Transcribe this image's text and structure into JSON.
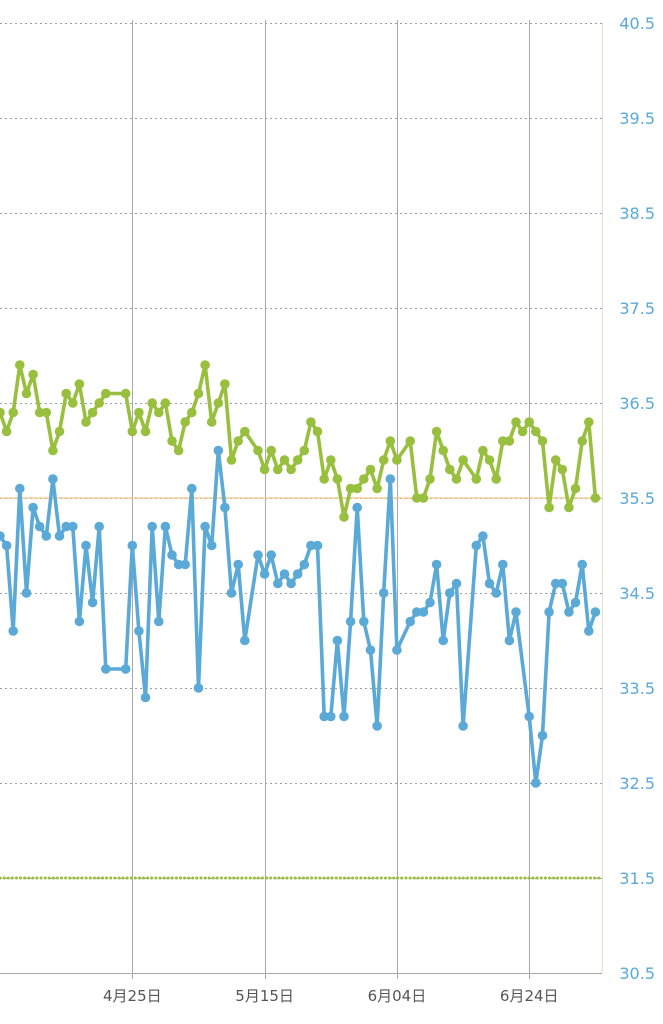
{
  "chart_data": {
    "type": "line",
    "title": "",
    "xlabel": "",
    "ylabel": "",
    "ylim": [
      30.5,
      40.5
    ],
    "y_ticks": [
      "40.5",
      "39.5",
      "38.5",
      "37.5",
      "36.5",
      "35.5",
      "34.5",
      "33.5",
      "32.5",
      "31.5",
      "30.5"
    ],
    "x_tick_labels": [
      "4月25日",
      "5月15日",
      "6月04日",
      "6月24日"
    ],
    "x_tick_dates": [
      "2023-04-25",
      "2023-05-15",
      "2023-06-04",
      "2023-06-24"
    ],
    "x_range": [
      "2023-04-05",
      "2023-07-05"
    ],
    "grid": true,
    "reference_lines": [
      {
        "value": 35.5,
        "color": "#f3c887",
        "style": "solid"
      },
      {
        "value": 31.5,
        "color": "#9bbf3c",
        "style": "dotted"
      }
    ],
    "series": [
      {
        "color": "#98bf3d",
        "points": [
          [
            "2023-04-05",
            36.4
          ],
          [
            "2023-04-06",
            36.2
          ],
          [
            "2023-04-07",
            36.4
          ],
          [
            "2023-04-08",
            36.9
          ],
          [
            "2023-04-09",
            36.6
          ],
          [
            "2023-04-10",
            36.8
          ],
          [
            "2023-04-11",
            36.4
          ],
          [
            "2023-04-12",
            36.4
          ],
          [
            "2023-04-13",
            36.0
          ],
          [
            "2023-04-14",
            36.2
          ],
          [
            "2023-04-15",
            36.6
          ],
          [
            "2023-04-16",
            36.5
          ],
          [
            "2023-04-17",
            36.7
          ],
          [
            "2023-04-18",
            36.3
          ],
          [
            "2023-04-19",
            36.4
          ],
          [
            "2023-04-20",
            36.5
          ],
          [
            "2023-04-21",
            36.6
          ],
          [
            "2023-04-24",
            36.6
          ],
          [
            "2023-04-25",
            36.2
          ],
          [
            "2023-04-26",
            36.4
          ],
          [
            "2023-04-27",
            36.2
          ],
          [
            "2023-04-28",
            36.5
          ],
          [
            "2023-04-29",
            36.4
          ],
          [
            "2023-04-30",
            36.5
          ],
          [
            "2023-05-01",
            36.1
          ],
          [
            "2023-05-02",
            36.0
          ],
          [
            "2023-05-03",
            36.3
          ],
          [
            "2023-05-04",
            36.4
          ],
          [
            "2023-05-05",
            36.6
          ],
          [
            "2023-05-06",
            36.9
          ],
          [
            "2023-05-07",
            36.3
          ],
          [
            "2023-05-08",
            36.5
          ],
          [
            "2023-05-09",
            36.7
          ],
          [
            "2023-05-10",
            35.9
          ],
          [
            "2023-05-11",
            36.1
          ],
          [
            "2023-05-12",
            36.2
          ],
          [
            "2023-05-14",
            36.0
          ],
          [
            "2023-05-15",
            35.8
          ],
          [
            "2023-05-16",
            36.0
          ],
          [
            "2023-05-17",
            35.8
          ],
          [
            "2023-05-18",
            35.9
          ],
          [
            "2023-05-19",
            35.8
          ],
          [
            "2023-05-20",
            35.9
          ],
          [
            "2023-05-21",
            36.0
          ],
          [
            "2023-05-22",
            36.3
          ],
          [
            "2023-05-23",
            36.2
          ],
          [
            "2023-05-24",
            35.7
          ],
          [
            "2023-05-25",
            35.9
          ],
          [
            "2023-05-26",
            35.7
          ],
          [
            "2023-05-27",
            35.3
          ],
          [
            "2023-05-28",
            35.6
          ],
          [
            "2023-05-29",
            35.6
          ],
          [
            "2023-05-30",
            35.7
          ],
          [
            "2023-05-31",
            35.8
          ],
          [
            "2023-06-01",
            35.6
          ],
          [
            "2023-06-02",
            35.9
          ],
          [
            "2023-06-03",
            36.1
          ],
          [
            "2023-06-04",
            35.9
          ],
          [
            "2023-06-06",
            36.1
          ],
          [
            "2023-06-07",
            35.5
          ],
          [
            "2023-06-08",
            35.5
          ],
          [
            "2023-06-09",
            35.7
          ],
          [
            "2023-06-10",
            36.2
          ],
          [
            "2023-06-11",
            36.0
          ],
          [
            "2023-06-12",
            35.8
          ],
          [
            "2023-06-13",
            35.7
          ],
          [
            "2023-06-14",
            35.9
          ],
          [
            "2023-06-16",
            35.7
          ],
          [
            "2023-06-17",
            36.0
          ],
          [
            "2023-06-18",
            35.9
          ],
          [
            "2023-06-19",
            35.7
          ],
          [
            "2023-06-20",
            36.1
          ],
          [
            "2023-06-21",
            36.1
          ],
          [
            "2023-06-22",
            36.3
          ],
          [
            "2023-06-23",
            36.2
          ],
          [
            "2023-06-24",
            36.3
          ],
          [
            "2023-06-25",
            36.2
          ],
          [
            "2023-06-26",
            36.1
          ],
          [
            "2023-06-27",
            35.4
          ],
          [
            "2023-06-28",
            35.9
          ],
          [
            "2023-06-29",
            35.8
          ],
          [
            "2023-06-30",
            35.4
          ],
          [
            "2023-07-01",
            35.6
          ],
          [
            "2023-07-02",
            36.1
          ],
          [
            "2023-07-03",
            36.3
          ],
          [
            "2023-07-04",
            35.5
          ]
        ]
      },
      {
        "color": "#5aa9d6",
        "points": [
          [
            "2023-04-05",
            35.1
          ],
          [
            "2023-04-06",
            35.0
          ],
          [
            "2023-04-07",
            34.1
          ],
          [
            "2023-04-08",
            35.6
          ],
          [
            "2023-04-09",
            34.5
          ],
          [
            "2023-04-10",
            35.4
          ],
          [
            "2023-04-11",
            35.2
          ],
          [
            "2023-04-12",
            35.1
          ],
          [
            "2023-04-13",
            35.7
          ],
          [
            "2023-04-14",
            35.1
          ],
          [
            "2023-04-15",
            35.2
          ],
          [
            "2023-04-16",
            35.2
          ],
          [
            "2023-04-17",
            34.2
          ],
          [
            "2023-04-18",
            35.0
          ],
          [
            "2023-04-19",
            34.4
          ],
          [
            "2023-04-20",
            35.2
          ],
          [
            "2023-04-21",
            33.7
          ],
          [
            "2023-04-24",
            33.7
          ],
          [
            "2023-04-25",
            35.0
          ],
          [
            "2023-04-26",
            34.1
          ],
          [
            "2023-04-27",
            33.4
          ],
          [
            "2023-04-28",
            35.2
          ],
          [
            "2023-04-29",
            34.2
          ],
          [
            "2023-04-30",
            35.2
          ],
          [
            "2023-05-01",
            34.9
          ],
          [
            "2023-05-02",
            34.8
          ],
          [
            "2023-05-03",
            34.8
          ],
          [
            "2023-05-04",
            35.6
          ],
          [
            "2023-05-05",
            33.5
          ],
          [
            "2023-05-06",
            35.2
          ],
          [
            "2023-05-07",
            35.0
          ],
          [
            "2023-05-08",
            36.0
          ],
          [
            "2023-05-09",
            35.4
          ],
          [
            "2023-05-10",
            34.5
          ],
          [
            "2023-05-11",
            34.8
          ],
          [
            "2023-05-12",
            34.0
          ],
          [
            "2023-05-14",
            34.9
          ],
          [
            "2023-05-15",
            34.7
          ],
          [
            "2023-05-16",
            34.9
          ],
          [
            "2023-05-17",
            34.6
          ],
          [
            "2023-05-18",
            34.7
          ],
          [
            "2023-05-19",
            34.6
          ],
          [
            "2023-05-20",
            34.7
          ],
          [
            "2023-05-21",
            34.8
          ],
          [
            "2023-05-22",
            35.0
          ],
          [
            "2023-05-23",
            35.0
          ],
          [
            "2023-05-24",
            33.2
          ],
          [
            "2023-05-25",
            33.2
          ],
          [
            "2023-05-26",
            34.0
          ],
          [
            "2023-05-27",
            33.2
          ],
          [
            "2023-05-28",
            34.2
          ],
          [
            "2023-05-29",
            35.4
          ],
          [
            "2023-05-30",
            34.2
          ],
          [
            "2023-05-31",
            33.9
          ],
          [
            "2023-06-01",
            33.1
          ],
          [
            "2023-06-02",
            34.5
          ],
          [
            "2023-06-03",
            35.7
          ],
          [
            "2023-06-04",
            33.9
          ],
          [
            "2023-06-06",
            34.2
          ],
          [
            "2023-06-07",
            34.3
          ],
          [
            "2023-06-08",
            34.3
          ],
          [
            "2023-06-09",
            34.4
          ],
          [
            "2023-06-10",
            34.8
          ],
          [
            "2023-06-11",
            34.0
          ],
          [
            "2023-06-12",
            34.5
          ],
          [
            "2023-06-13",
            34.6
          ],
          [
            "2023-06-14",
            33.1
          ],
          [
            "2023-06-16",
            35.0
          ],
          [
            "2023-06-17",
            35.1
          ],
          [
            "2023-06-18",
            34.6
          ],
          [
            "2023-06-19",
            34.5
          ],
          [
            "2023-06-20",
            34.8
          ],
          [
            "2023-06-21",
            34.0
          ],
          [
            "2023-06-22",
            34.3
          ],
          [
            "2023-06-24",
            33.2
          ],
          [
            "2023-06-25",
            32.5
          ],
          [
            "2023-06-26",
            33.0
          ],
          [
            "2023-06-27",
            34.3
          ],
          [
            "2023-06-28",
            34.6
          ],
          [
            "2023-06-29",
            34.6
          ],
          [
            "2023-06-30",
            34.3
          ],
          [
            "2023-07-01",
            34.4
          ],
          [
            "2023-07-02",
            34.8
          ],
          [
            "2023-07-03",
            34.1
          ],
          [
            "2023-07-04",
            34.3
          ]
        ]
      }
    ]
  }
}
